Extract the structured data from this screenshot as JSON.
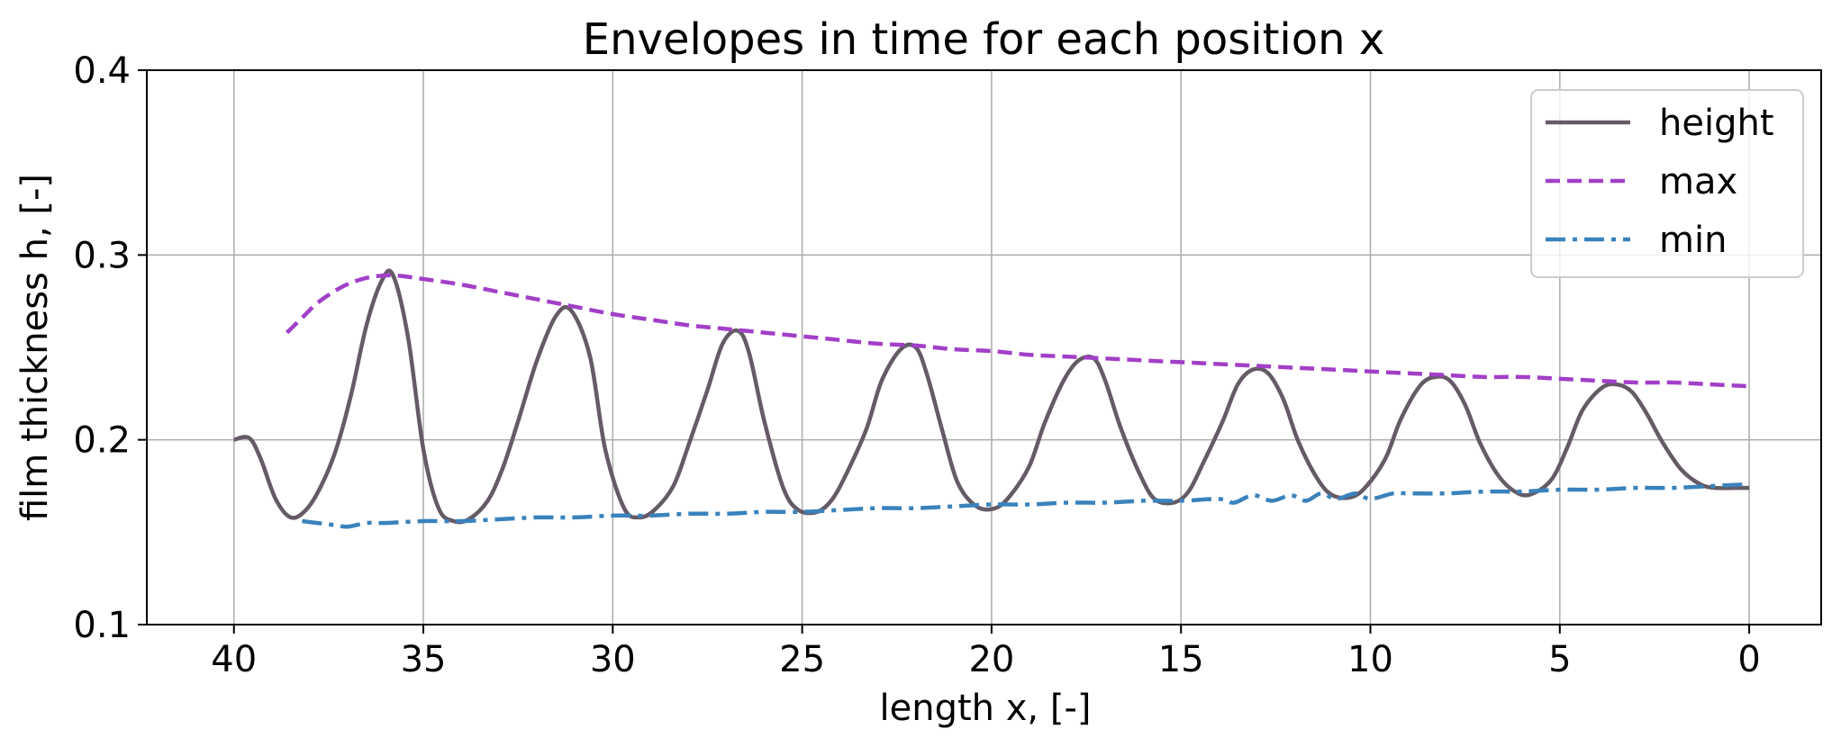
{
  "chart_data": {
    "type": "line",
    "title": "Envelopes in time for each position x",
    "xlabel": "length x, [-]",
    "ylabel": "film thickness h, [-]",
    "xlim": [
      42.3,
      -1.9
    ],
    "ylim": [
      0.1,
      0.4
    ],
    "x_reversed": true,
    "xticks": [
      40,
      35,
      30,
      25,
      20,
      15,
      10,
      5,
      0
    ],
    "yticks": [
      0.1,
      0.2,
      0.3,
      0.4
    ],
    "grid": true,
    "legend_position": "top-right",
    "series": [
      {
        "name": "height",
        "color": "#655b66",
        "style": "solid",
        "x": [
          40.0,
          39.6,
          39.3,
          38.9,
          38.5,
          38.1,
          37.7,
          37.3,
          36.9,
          36.5,
          36.1,
          35.8,
          35.4,
          35.0,
          34.6,
          34.2,
          33.8,
          33.3,
          32.9,
          32.5,
          32.0,
          31.5,
          31.1,
          30.6,
          30.2,
          29.7,
          29.3,
          28.9,
          28.4,
          28.0,
          27.5,
          27.1,
          26.7,
          26.4,
          26.0,
          25.5,
          25.1,
          24.6,
          24.2,
          23.8,
          23.3,
          22.9,
          22.4,
          22.0,
          21.7,
          21.3,
          20.9,
          20.4,
          19.9,
          19.5,
          19.0,
          18.6,
          18.1,
          17.7,
          17.3,
          17.0,
          16.6,
          16.1,
          15.7,
          15.2,
          14.8,
          14.4,
          13.9,
          13.5,
          13.1,
          12.7,
          12.3,
          11.9,
          11.4,
          11.0,
          10.5,
          10.1,
          9.6,
          9.2,
          8.7,
          8.3,
          7.9,
          7.5,
          7.1,
          6.6,
          6.1,
          5.7,
          5.2,
          4.8,
          4.4,
          3.9,
          3.5,
          3.1,
          2.7,
          2.3,
          1.8,
          1.3,
          0.9,
          0.4,
          0.0
        ],
        "y": [
          0.2,
          0.201,
          0.19,
          0.168,
          0.158,
          0.162,
          0.175,
          0.195,
          0.225,
          0.262,
          0.286,
          0.289,
          0.255,
          0.195,
          0.163,
          0.156,
          0.157,
          0.167,
          0.185,
          0.21,
          0.243,
          0.267,
          0.27,
          0.245,
          0.195,
          0.163,
          0.158,
          0.162,
          0.175,
          0.197,
          0.227,
          0.252,
          0.259,
          0.247,
          0.21,
          0.174,
          0.162,
          0.161,
          0.168,
          0.183,
          0.206,
          0.232,
          0.249,
          0.25,
          0.235,
          0.205,
          0.177,
          0.164,
          0.163,
          0.17,
          0.186,
          0.209,
          0.232,
          0.243,
          0.244,
          0.232,
          0.207,
          0.182,
          0.168,
          0.166,
          0.172,
          0.188,
          0.21,
          0.23,
          0.238,
          0.236,
          0.222,
          0.199,
          0.179,
          0.17,
          0.169,
          0.175,
          0.19,
          0.211,
          0.229,
          0.234,
          0.232,
          0.219,
          0.198,
          0.18,
          0.171,
          0.171,
          0.179,
          0.196,
          0.216,
          0.228,
          0.23,
          0.226,
          0.214,
          0.199,
          0.184,
          0.176,
          0.174,
          0.174,
          0.174
        ]
      },
      {
        "name": "max",
        "color": "#a23fc8",
        "style": "dashed",
        "x": [
          38.6,
          38.2,
          37.8,
          37.3,
          36.9,
          36.4,
          35.8,
          35.0,
          34.0,
          33.0,
          32.0,
          31.0,
          30.0,
          29.0,
          28.0,
          27.0,
          26.0,
          25.0,
          24.0,
          23.0,
          22.0,
          21.0,
          20.0,
          19.0,
          18.0,
          17.0,
          16.0,
          15.0,
          14.0,
          13.0,
          12.0,
          11.0,
          10.0,
          9.0,
          8.0,
          7.0,
          6.0,
          5.0,
          4.0,
          3.0,
          2.0,
          1.0,
          0.0
        ],
        "y": [
          0.258,
          0.266,
          0.274,
          0.281,
          0.285,
          0.288,
          0.289,
          0.287,
          0.284,
          0.28,
          0.276,
          0.272,
          0.268,
          0.265,
          0.262,
          0.26,
          0.258,
          0.256,
          0.254,
          0.252,
          0.251,
          0.249,
          0.248,
          0.246,
          0.245,
          0.244,
          0.243,
          0.242,
          0.241,
          0.24,
          0.239,
          0.238,
          0.237,
          0.236,
          0.235,
          0.234,
          0.234,
          0.233,
          0.232,
          0.231,
          0.231,
          0.23,
          0.229
        ]
      },
      {
        "name": "min",
        "color": "#3a82bc",
        "style": "dashdot",
        "x": [
          38.2,
          37.4,
          37.0,
          36.5,
          36.0,
          35.0,
          34.0,
          33.0,
          32.0,
          31.0,
          30.0,
          29.0,
          28.0,
          27.0,
          26.0,
          25.0,
          24.0,
          23.0,
          22.0,
          21.0,
          20.0,
          19.0,
          18.0,
          17.0,
          16.0,
          15.0,
          14.0,
          13.6,
          13.1,
          12.6,
          12.1,
          11.7,
          11.3,
          10.9,
          10.4,
          10.0,
          9.4,
          9.0,
          8.0,
          7.0,
          6.0,
          5.0,
          4.0,
          3.0,
          2.0,
          1.0,
          0.0
        ],
        "y": [
          0.156,
          0.154,
          0.153,
          0.155,
          0.155,
          0.156,
          0.156,
          0.157,
          0.158,
          0.158,
          0.159,
          0.159,
          0.16,
          0.16,
          0.161,
          0.161,
          0.162,
          0.163,
          0.163,
          0.164,
          0.165,
          0.165,
          0.166,
          0.166,
          0.167,
          0.167,
          0.168,
          0.166,
          0.17,
          0.167,
          0.17,
          0.167,
          0.171,
          0.168,
          0.171,
          0.168,
          0.171,
          0.171,
          0.171,
          0.172,
          0.172,
          0.173,
          0.173,
          0.174,
          0.174,
          0.175,
          0.176
        ]
      }
    ]
  }
}
